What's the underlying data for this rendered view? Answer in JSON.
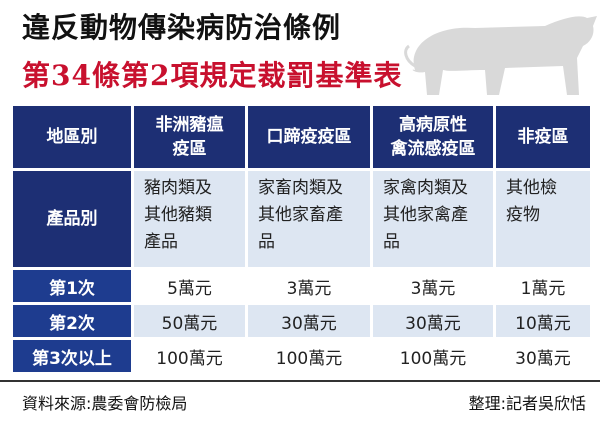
{
  "title": {
    "line1": "違反動物傳染病防治條例",
    "line2": "第34條第2項規定裁罰基準表"
  },
  "table": {
    "corner": "地區別",
    "columns": [
      "非洲豬瘟疫區",
      "口蹄疫疫區",
      "高病原性禽流感疫區",
      "非疫區"
    ],
    "column_lines": [
      [
        "非洲豬瘟",
        "疫區"
      ],
      [
        "口蹄疫疫區"
      ],
      [
        "高病原性",
        "禽流感疫區"
      ],
      [
        "非疫區"
      ]
    ],
    "product_row_label": "產品別",
    "products": [
      [
        "豬肉類及",
        "其他豬類",
        "產品"
      ],
      [
        "家畜肉類及",
        "其他家畜產",
        "品"
      ],
      [
        "家禽肉類及",
        "其他家禽產",
        "品"
      ],
      [
        "其他檢",
        "疫物"
      ]
    ],
    "rows": [
      {
        "label": "第1次",
        "values": [
          "5萬元",
          "3萬元",
          "3萬元",
          "1萬元"
        ]
      },
      {
        "label": "第2次",
        "values": [
          "50萬元",
          "30萬元",
          "30萬元",
          "10萬元"
        ]
      },
      {
        "label": "第3次以上",
        "values": [
          "100萬元",
          "100萬元",
          "100萬元",
          "30萬元"
        ]
      }
    ]
  },
  "footer": {
    "source": "資料來源:農委會防檢局",
    "credit": "整理:記者吳欣恬"
  },
  "colors": {
    "header_bg": "#1d2f74",
    "title_red": "#c8102e",
    "cell_light": "#dde6f2",
    "pig_gray": "#d9d9d9"
  }
}
